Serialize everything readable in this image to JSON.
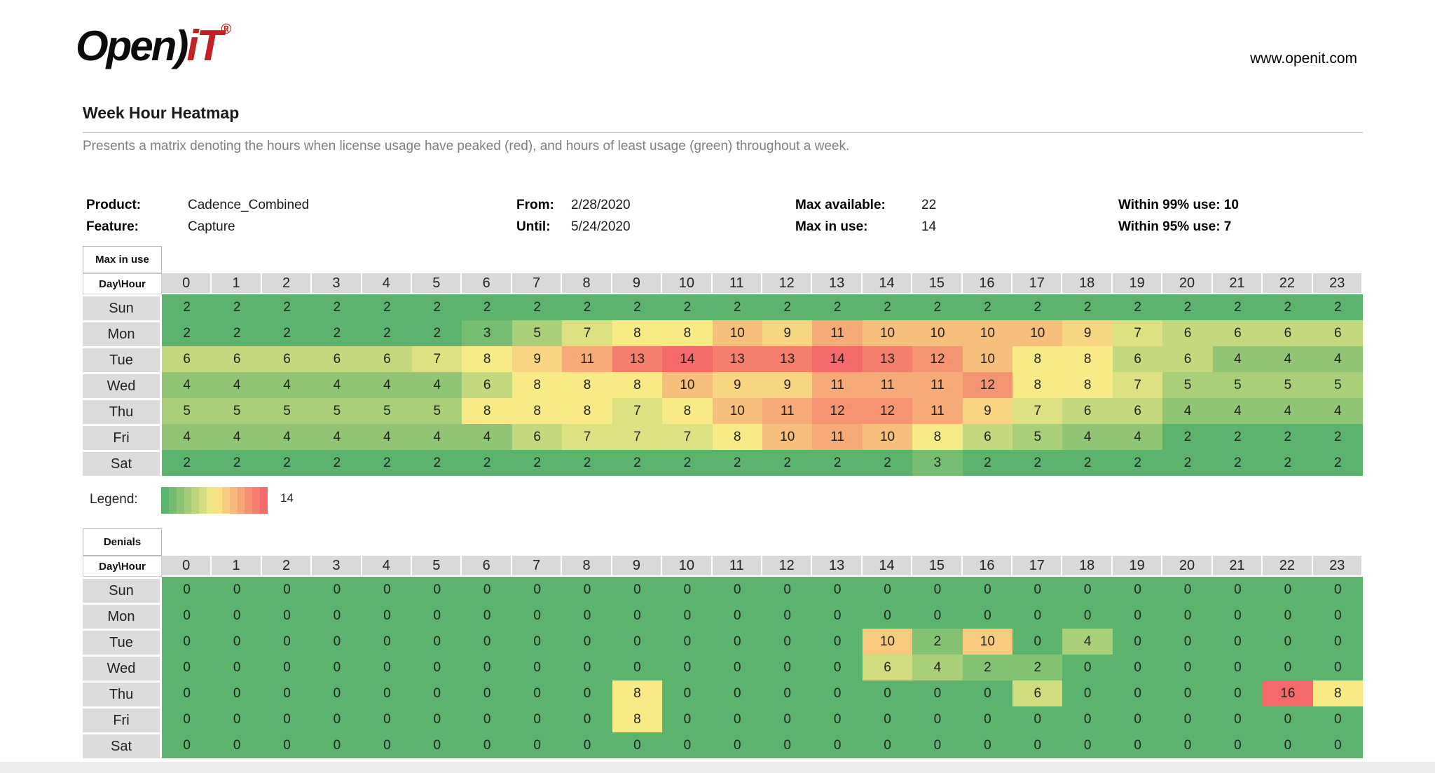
{
  "header": {
    "logo_black": "Open)",
    "logo_red": "iT",
    "logo_reg": "®",
    "website": "www.openit.com",
    "title": "Week Hour Heatmap",
    "description": "Presents a matrix denoting the hours when license usage have peaked (red), and hours of least usage (green) throughout a week."
  },
  "meta": {
    "product_label": "Product:",
    "product_value": "Cadence_Combined",
    "feature_label": "Feature:",
    "feature_value": "Capture",
    "from_label": "From:",
    "from_value": "2/28/2020",
    "until_label": "Until:",
    "until_value": "5/24/2020",
    "max_available_label": "Max available:",
    "max_available_value": "22",
    "max_in_use_label": "Max in use:",
    "max_in_use_value": "14",
    "within_99_label": "Within 99% use: 10",
    "within_95_label": "Within 95% use: 7"
  },
  "legend": {
    "label": "Legend:",
    "max_label": "14",
    "steps": 14
  },
  "colors": {
    "scale_low": "#5CB36D",
    "scale_mid": "#F8EA85",
    "scale_high": "#F4696A",
    "header_bg": "#D9D9D9",
    "day_label_bg": "#DCDCDC"
  },
  "chart_data": [
    {
      "type": "heatmap",
      "title": "Max in use",
      "corner_label": "Day\\Hour",
      "x_label": "Hour",
      "y_label": "Day",
      "legend_position": "below",
      "grid": false,
      "hours": [
        0,
        1,
        2,
        3,
        4,
        5,
        6,
        7,
        8,
        9,
        10,
        11,
        12,
        13,
        14,
        15,
        16,
        17,
        18,
        19,
        20,
        21,
        22,
        23
      ],
      "days": [
        "Sun",
        "Mon",
        "Tue",
        "Wed",
        "Thu",
        "Fri",
        "Sat"
      ],
      "scale": {
        "min": 2,
        "max": 14
      },
      "values": [
        [
          2,
          2,
          2,
          2,
          2,
          2,
          2,
          2,
          2,
          2,
          2,
          2,
          2,
          2,
          2,
          2,
          2,
          2,
          2,
          2,
          2,
          2,
          2,
          2
        ],
        [
          2,
          2,
          2,
          2,
          2,
          2,
          3,
          5,
          7,
          8,
          8,
          10,
          9,
          11,
          10,
          10,
          10,
          10,
          9,
          7,
          6,
          6,
          6,
          6
        ],
        [
          6,
          6,
          6,
          6,
          6,
          7,
          8,
          9,
          11,
          13,
          14,
          13,
          13,
          14,
          13,
          12,
          10,
          8,
          8,
          6,
          6,
          4,
          4,
          4
        ],
        [
          4,
          4,
          4,
          4,
          4,
          4,
          6,
          8,
          8,
          8,
          10,
          9,
          9,
          11,
          11,
          11,
          12,
          8,
          8,
          7,
          5,
          5,
          5,
          5
        ],
        [
          5,
          5,
          5,
          5,
          5,
          5,
          8,
          8,
          8,
          7,
          8,
          10,
          11,
          12,
          12,
          11,
          9,
          7,
          6,
          6,
          4,
          4,
          4,
          4
        ],
        [
          4,
          4,
          4,
          4,
          4,
          4,
          4,
          6,
          7,
          7,
          7,
          8,
          10,
          11,
          10,
          8,
          6,
          5,
          4,
          4,
          2,
          2,
          2,
          2
        ],
        [
          2,
          2,
          2,
          2,
          2,
          2,
          2,
          2,
          2,
          2,
          2,
          2,
          2,
          2,
          2,
          3,
          2,
          2,
          2,
          2,
          2,
          2,
          2,
          2
        ]
      ]
    },
    {
      "type": "heatmap",
      "title": "Denials",
      "corner_label": "Day\\Hour",
      "x_label": "Hour",
      "y_label": "Day",
      "grid": false,
      "hours": [
        0,
        1,
        2,
        3,
        4,
        5,
        6,
        7,
        8,
        9,
        10,
        11,
        12,
        13,
        14,
        15,
        16,
        17,
        18,
        19,
        20,
        21,
        22,
        23
      ],
      "days": [
        "Sun",
        "Mon",
        "Tue",
        "Wed",
        "Thu",
        "Fri",
        "Sat"
      ],
      "scale": {
        "min": 0,
        "max": 16
      },
      "values": [
        [
          0,
          0,
          0,
          0,
          0,
          0,
          0,
          0,
          0,
          0,
          0,
          0,
          0,
          0,
          0,
          0,
          0,
          0,
          0,
          0,
          0,
          0,
          0,
          0
        ],
        [
          0,
          0,
          0,
          0,
          0,
          0,
          0,
          0,
          0,
          0,
          0,
          0,
          0,
          0,
          0,
          0,
          0,
          0,
          0,
          0,
          0,
          0,
          0,
          0
        ],
        [
          0,
          0,
          0,
          0,
          0,
          0,
          0,
          0,
          0,
          0,
          0,
          0,
          0,
          0,
          10,
          2,
          10,
          0,
          4,
          0,
          0,
          0,
          0,
          0
        ],
        [
          0,
          0,
          0,
          0,
          0,
          0,
          0,
          0,
          0,
          0,
          0,
          0,
          0,
          0,
          6,
          4,
          2,
          2,
          0,
          0,
          0,
          0,
          0,
          0
        ],
        [
          0,
          0,
          0,
          0,
          0,
          0,
          0,
          0,
          0,
          8,
          0,
          0,
          0,
          0,
          0,
          0,
          0,
          6,
          0,
          0,
          0,
          0,
          16,
          8
        ],
        [
          0,
          0,
          0,
          0,
          0,
          0,
          0,
          0,
          0,
          8,
          0,
          0,
          0,
          0,
          0,
          0,
          0,
          0,
          0,
          0,
          0,
          0,
          0,
          0
        ],
        [
          0,
          0,
          0,
          0,
          0,
          0,
          0,
          0,
          0,
          0,
          0,
          0,
          0,
          0,
          0,
          0,
          0,
          0,
          0,
          0,
          0,
          0,
          0,
          0
        ]
      ]
    }
  ]
}
